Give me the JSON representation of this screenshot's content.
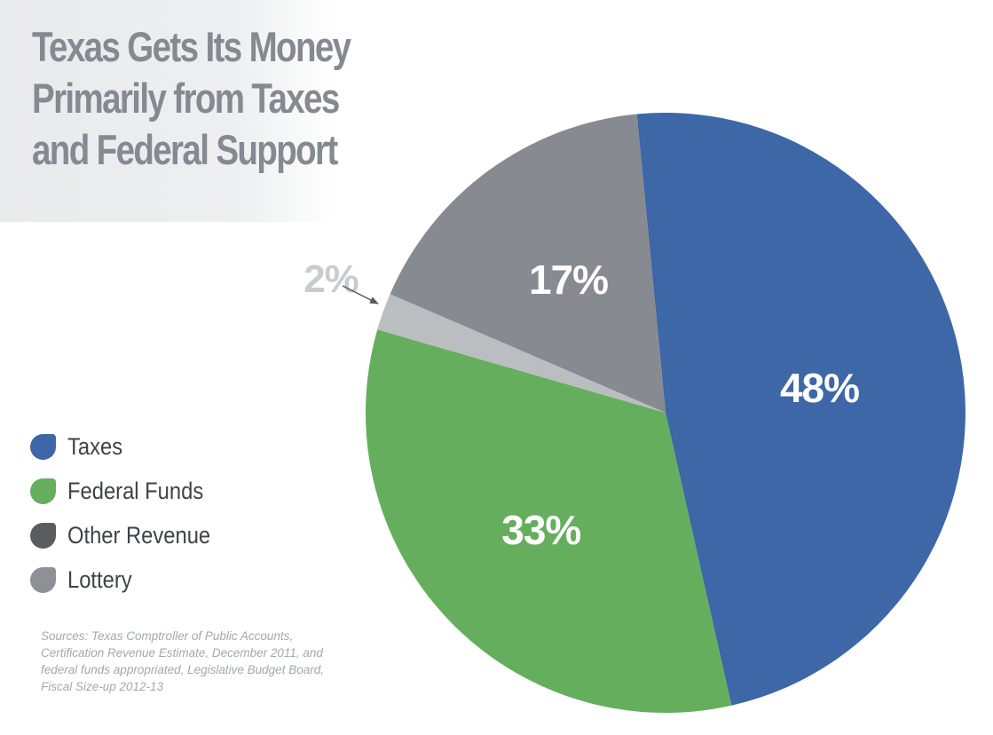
{
  "title_lines": [
    "Texas Gets Its Money",
    "Primarily from Taxes",
    "and Federal Support"
  ],
  "chart_data": {
    "type": "pie",
    "title": "Texas Gets Its Money Primarily from Taxes and Federal Support",
    "slices": [
      {
        "name": "Taxes",
        "value": 48,
        "label": "48%",
        "color": "#3d67a7",
        "label_color": "#ffffff"
      },
      {
        "name": "Federal Funds",
        "value": 33,
        "label": "33%",
        "color": "#65ae5e",
        "label_color": "#ffffff"
      },
      {
        "name": "Lottery",
        "value": 2,
        "label": "2%",
        "color": "#bbbec1",
        "label_color": "#c9cbce"
      },
      {
        "name": "Other Revenue",
        "value": 17,
        "label": "17%",
        "color": "#888a92",
        "label_color": "#ffffff"
      }
    ],
    "legend_placement": "left"
  },
  "legend": [
    {
      "label": "Taxes",
      "color": "#3d67a7"
    },
    {
      "label": "Federal Funds",
      "color": "#65ae5e"
    },
    {
      "label": "Other Revenue",
      "color": "#5b5c60"
    },
    {
      "label": "Lottery",
      "color": "#8e9096"
    }
  ],
  "sources_lines": [
    "Sources: Texas Comptroller of Public Accounts,",
    "Certification Revenue Estimate, December 2011, and",
    "federal funds appropriated, Legislative Budget Board,",
    "Fiscal Size-up 2012-13"
  ]
}
